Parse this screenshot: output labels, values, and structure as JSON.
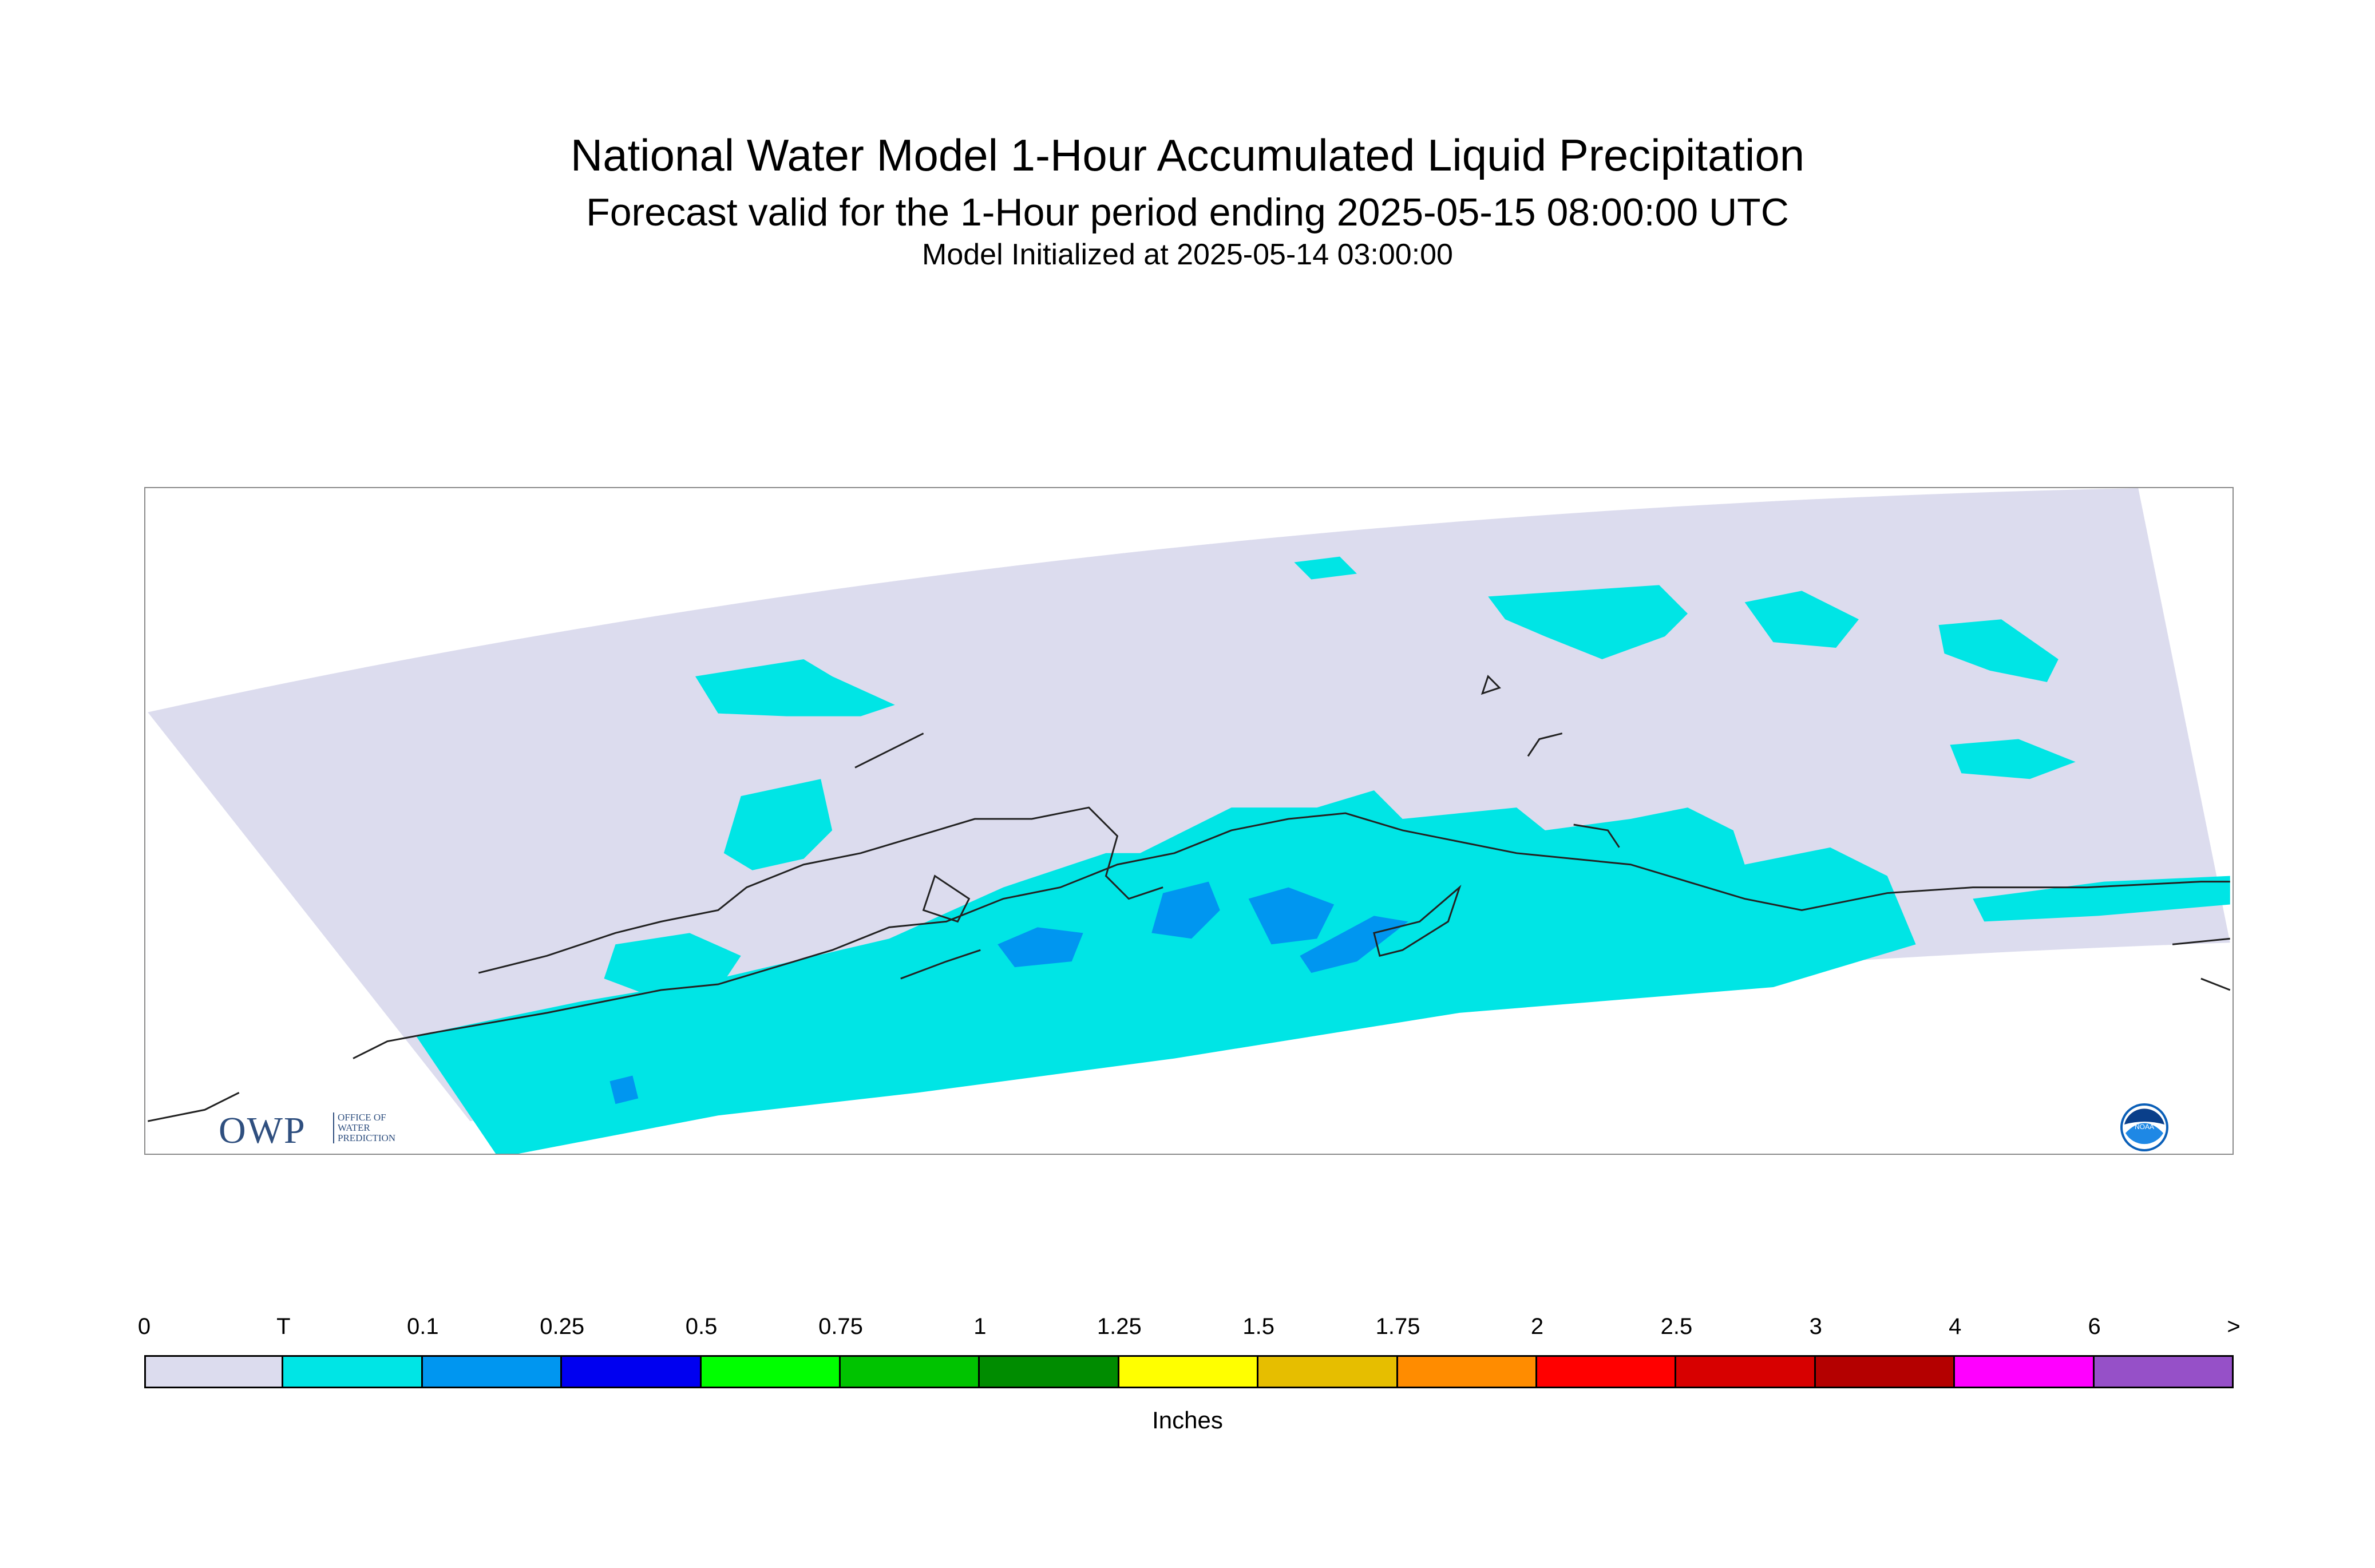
{
  "title": "National Water Model 1-Hour Accumulated Liquid Precipitation",
  "subtitle": "Forecast valid for the 1-Hour period ending 2025-05-15 08:00:00 UTC",
  "init_line": "Model Initialized at 2025-05-14 03:00:00",
  "logos": {
    "owp_letters": "OWP",
    "owp_sub": [
      "OFFICE OF",
      "WATER",
      "PREDICTION"
    ],
    "noaa_text": "NOAA"
  },
  "map": {
    "region": "Southcentral Alaska",
    "domain_color": "#dcdcee",
    "coastline_color": "#222222",
    "precip_categories_shown": [
      "T",
      "0.1"
    ]
  },
  "colorbar": {
    "units": "Inches",
    "labels": [
      "0",
      "T",
      "0.1",
      "0.25",
      "0.5",
      "0.75",
      "1",
      "1.25",
      "1.5",
      "1.75",
      "2",
      "2.5",
      "3",
      "4",
      "6",
      ">"
    ],
    "colors": [
      "#dcdcee",
      "#00e5e5",
      "#0096f0",
      "#0000f0",
      "#00ff00",
      "#00c300",
      "#008c00",
      "#ffff00",
      "#e6be00",
      "#ff8c00",
      "#ff0000",
      "#d70000",
      "#b40000",
      "#ff00ff",
      "#9650c8"
    ]
  }
}
